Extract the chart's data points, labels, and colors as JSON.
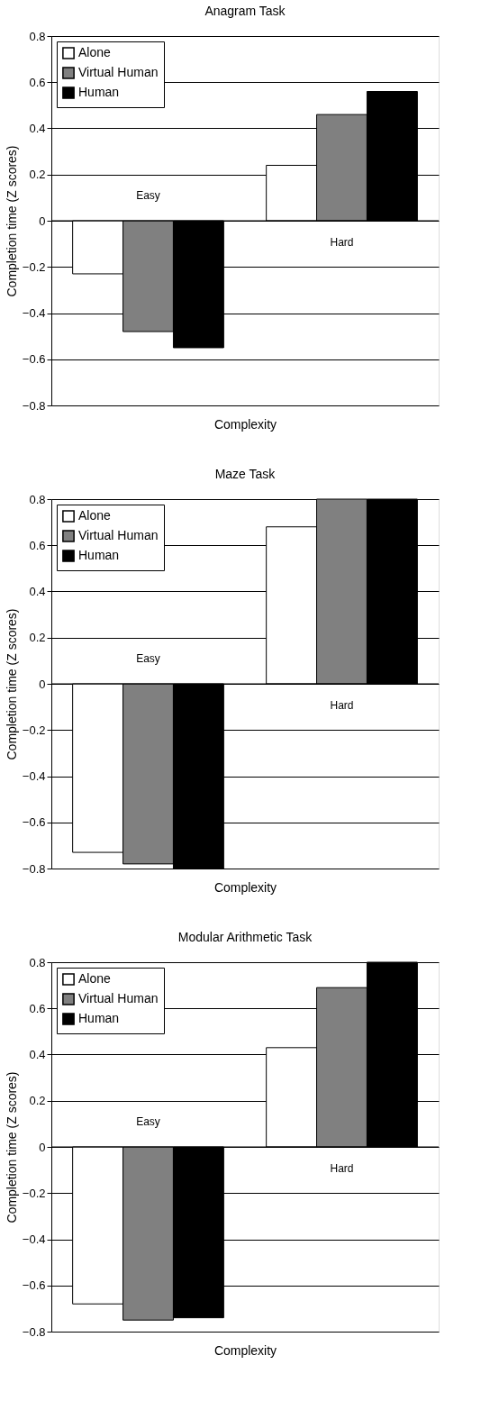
{
  "chart_data": [
    {
      "type": "bar",
      "title": "Anagram Task",
      "xlabel": "Complexity",
      "ylabel": "Completion time (Z scores)",
      "categories": [
        "Easy",
        "Hard"
      ],
      "series": [
        {
          "name": "Alone",
          "color": "#ffffff",
          "values": [
            -0.23,
            0.24
          ]
        },
        {
          "name": "Virtual Human",
          "color": "#808080",
          "values": [
            -0.48,
            0.46
          ]
        },
        {
          "name": "Human",
          "color": "#000000",
          "values": [
            -0.55,
            0.56
          ]
        }
      ],
      "ylim": [
        -0.8,
        0.8
      ],
      "yticks": [
        -0.8,
        -0.6,
        -0.4,
        -0.2,
        0,
        0.2,
        0.4,
        0.6,
        0.8
      ],
      "grid": "y",
      "legend": "top left"
    },
    {
      "type": "bar",
      "title": "Maze Task",
      "xlabel": "Complexity",
      "ylabel": "Completion time (Z scores)",
      "categories": [
        "Easy",
        "Hard"
      ],
      "series": [
        {
          "name": "Alone",
          "color": "#ffffff",
          "values": [
            -0.73,
            0.68
          ]
        },
        {
          "name": "Virtual Human",
          "color": "#808080",
          "values": [
            -0.78,
            0.8
          ]
        },
        {
          "name": "Human",
          "color": "#000000",
          "values": [
            -0.8,
            0.8
          ]
        }
      ],
      "ylim": [
        -0.8,
        0.8
      ],
      "yticks": [
        -0.8,
        -0.6,
        -0.4,
        -0.2,
        0,
        0.2,
        0.4,
        0.6,
        0.8
      ],
      "grid": "y",
      "legend": "top left"
    },
    {
      "type": "bar",
      "title": "Modular Arithmetic Task",
      "xlabel": "Complexity",
      "ylabel": "Completion time (Z scores)",
      "categories": [
        "Easy",
        "Hard"
      ],
      "series": [
        {
          "name": "Alone",
          "color": "#ffffff",
          "values": [
            -0.68,
            0.43
          ]
        },
        {
          "name": "Virtual Human",
          "color": "#808080",
          "values": [
            -0.75,
            0.69
          ]
        },
        {
          "name": "Human",
          "color": "#000000",
          "values": [
            -0.74,
            0.8
          ]
        }
      ],
      "ylim": [
        -0.8,
        0.8
      ],
      "yticks": [
        -0.8,
        -0.6,
        -0.4,
        -0.2,
        0,
        0.2,
        0.4,
        0.6,
        0.8
      ],
      "grid": "y",
      "legend": "top left"
    }
  ]
}
